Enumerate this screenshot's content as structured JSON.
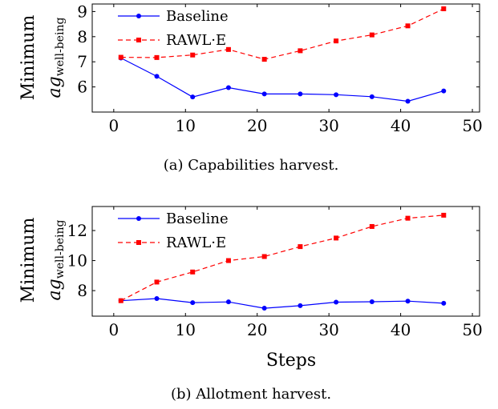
{
  "chart_data": [
    {
      "type": "line",
      "caption": "(a) Capabilities harvest.",
      "ylabel_line1": "Minimum",
      "ylabel_main": "ag",
      "ylabel_sub": "well-being",
      "xlabel": "",
      "xlim": [
        -3,
        51
      ],
      "ylim": [
        5.0,
        9.3
      ],
      "xticks": [
        0,
        10,
        20,
        30,
        40,
        50
      ],
      "yticks": [
        6,
        7,
        8,
        9
      ],
      "legend_position": "top-left",
      "grid": false,
      "x": [
        1,
        6,
        11,
        16,
        21,
        26,
        31,
        36,
        41,
        46
      ],
      "series": [
        {
          "name": "Baseline",
          "color": "#0000ff",
          "marker": "circle",
          "dash": "solid",
          "values": [
            7.15,
            6.42,
            5.6,
            5.97,
            5.72,
            5.72,
            5.69,
            5.61,
            5.43,
            5.84
          ]
        },
        {
          "name": "RAWL·E",
          "color": "#ff0000",
          "marker": "square",
          "dash": "dashed",
          "values": [
            7.18,
            7.17,
            7.27,
            7.49,
            7.1,
            7.44,
            7.83,
            8.07,
            8.43,
            9.11
          ]
        }
      ]
    },
    {
      "type": "line",
      "caption": "(b) Allotment harvest.",
      "ylabel_line1": "Minimum",
      "ylabel_main": "ag",
      "ylabel_sub": "well-being",
      "xlabel": "Steps",
      "xlim": [
        -3,
        51
      ],
      "ylim": [
        6.3,
        13.6
      ],
      "xticks": [
        0,
        10,
        20,
        30,
        40,
        50
      ],
      "yticks": [
        8,
        10,
        12
      ],
      "legend_position": "top-left",
      "grid": false,
      "x": [
        1,
        6,
        11,
        16,
        21,
        26,
        31,
        36,
        41,
        46
      ],
      "series": [
        {
          "name": "Baseline",
          "color": "#0000ff",
          "marker": "circle",
          "dash": "solid",
          "values": [
            7.33,
            7.47,
            7.2,
            7.25,
            6.83,
            7.0,
            7.23,
            7.26,
            7.3,
            7.16
          ]
        },
        {
          "name": "RAWL·E",
          "color": "#ff0000",
          "marker": "square",
          "dash": "dashed",
          "values": [
            7.33,
            8.57,
            9.24,
            10.0,
            10.27,
            10.93,
            11.5,
            12.27,
            12.82,
            13.02
          ]
        }
      ]
    }
  ]
}
